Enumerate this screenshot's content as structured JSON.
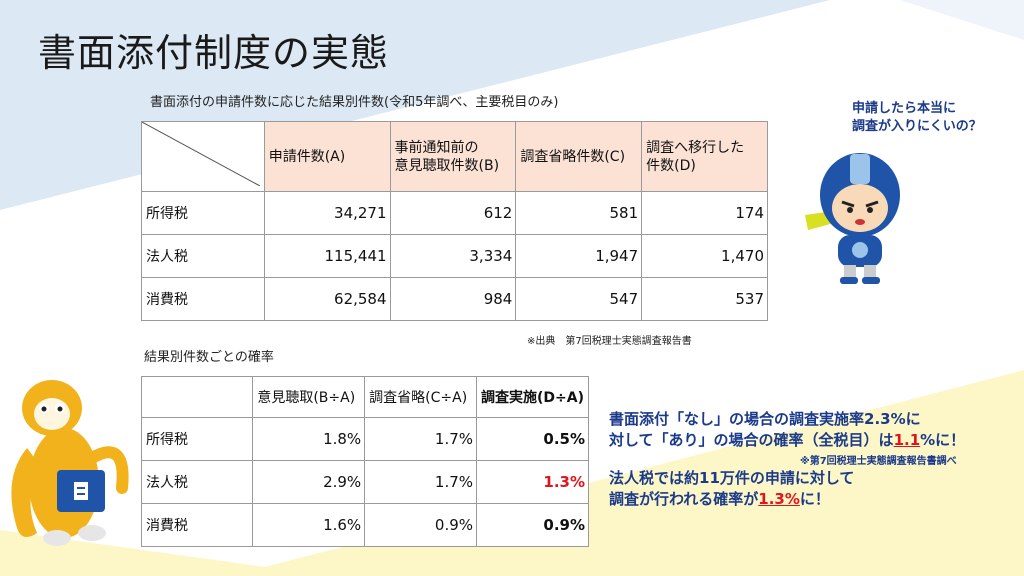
{
  "slide": {
    "title": "書面添付制度の実態"
  },
  "table1": {
    "caption": "書面添付の申請件数に応じた結果別件数(令和5年調べ、主要税目のみ)",
    "headers": [
      "申請件数(A)",
      "事前通知前の\n意見聴取件数(B)",
      "調査省略件数(C)",
      "調査へ移行した\n件数(D)"
    ],
    "rows": [
      {
        "label": "所得税",
        "values": [
          "34,271",
          "612",
          "581",
          "174"
        ]
      },
      {
        "label": "法人税",
        "values": [
          "115,441",
          "3,334",
          "1,947",
          "1,470"
        ]
      },
      {
        "label": "消費税",
        "values": [
          "62,584",
          "984",
          "547",
          "537"
        ]
      }
    ],
    "source": "※出典　第7回税理士実態調査報告書"
  },
  "table2": {
    "caption": "結果別件数ごとの確率",
    "headers": [
      "意見聴取(B÷A)",
      "調査省略(C÷A)",
      "調査実施(D÷A)"
    ],
    "rows": [
      {
        "label": "所得税",
        "values": [
          "1.8%",
          "1.7%",
          "0.5%"
        ]
      },
      {
        "label": "法人税",
        "values": [
          "2.9%",
          "1.7%",
          "1.3%"
        ]
      },
      {
        "label": "消費税",
        "values": [
          "1.6%",
          "0.9%",
          "0.9%"
        ]
      }
    ]
  },
  "message": {
    "line1": "書面添付「なし」の場合の調査実施率2.3%に",
    "line2_pre": "対して「あり」の場合の確率（全税目）は",
    "line2_hl": "1.1",
    "line2_post": "%に！",
    "note": "※第7回税理士実態調査報告書調べ",
    "line3": "法人税では約11万件の申請に対して",
    "line4_pre": "調査が行われる確率が",
    "line4_hl": "1.3%",
    "line4_post": "に！"
  },
  "bubble": {
    "line1": "申請したら本当に",
    "line2": "調査が入りにくいの？"
  },
  "colors": {
    "header_fill": "#fbe2d5",
    "accent_red": "#e0141c",
    "text_blue": "#1b3a8a",
    "bg_blue": "#dce9f5",
    "bg_yellow": "#fdf7c8"
  }
}
